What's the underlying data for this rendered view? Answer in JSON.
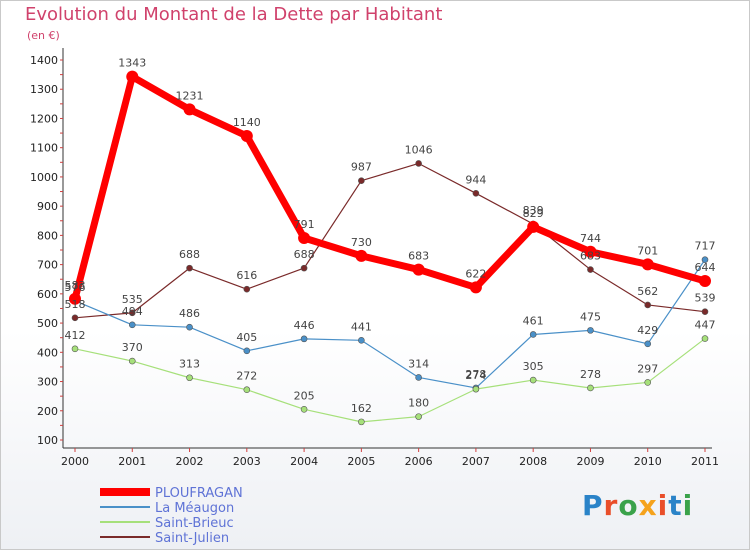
{
  "title": "Evolution du Montant de la Dette par Habitant",
  "subtitle": "(en €)",
  "logo": {
    "text": "Proxiti",
    "letter_colors": [
      "#2a83c8",
      "#e94e2a",
      "#3aa24a",
      "#f5a21c",
      "#e94e2a",
      "#2a83c8",
      "#3aa24a"
    ]
  },
  "chart_data": {
    "type": "line",
    "x": [
      2000,
      2001,
      2002,
      2003,
      2004,
      2005,
      2006,
      2007,
      2008,
      2009,
      2010,
      2011
    ],
    "ylim": [
      100,
      1400
    ],
    "yticks": [
      100,
      200,
      300,
      400,
      500,
      600,
      700,
      800,
      900,
      1000,
      1100,
      1200,
      1300,
      1400
    ],
    "grid": false,
    "legend_position": "bottom-left",
    "series": [
      {
        "name": "PLOUFRAGAN",
        "color": "#ff0000",
        "text_color": "#5f73d6",
        "values": [
          583,
          1343,
          1231,
          1140,
          791,
          730,
          683,
          622,
          829,
          744,
          701,
          644
        ],
        "labels": [
          "583",
          "1343",
          "1231",
          "1140",
          "791",
          "730",
          "683",
          "622",
          "829",
          "744",
          "701",
          "644"
        ]
      },
      {
        "name": "La Méaugon",
        "color": "#4a90c8",
        "text_color": "#5f73d6",
        "values": [
          576,
          494,
          486,
          405,
          446,
          441,
          314,
          278,
          461,
          475,
          429,
          717
        ],
        "labels": [
          "576",
          "494",
          "486",
          "405",
          "446",
          "441",
          "314",
          "278",
          "461",
          "475",
          "429",
          "717"
        ]
      },
      {
        "name": "Saint-Brieuc",
        "color": "#a6e07a",
        "text_color": "#5f73d6",
        "values": [
          412,
          370,
          313,
          272,
          205,
          162,
          180,
          274,
          305,
          278,
          297,
          447
        ],
        "labels": [
          "412",
          "370",
          "313",
          "272",
          "205",
          "162",
          "180",
          "274",
          "305",
          "278",
          "297",
          "447"
        ]
      },
      {
        "name": "Saint-Julien",
        "color": "#7a2a2a",
        "text_color": "#5f73d6",
        "values": [
          518,
          535,
          688,
          616,
          688,
          987,
          1046,
          944,
          839,
          683,
          562,
          539
        ],
        "labels": [
          "518",
          "535",
          "688",
          "616",
          "688",
          "987",
          "1046",
          "944",
          "839",
          "683",
          "562",
          "539"
        ]
      }
    ]
  }
}
